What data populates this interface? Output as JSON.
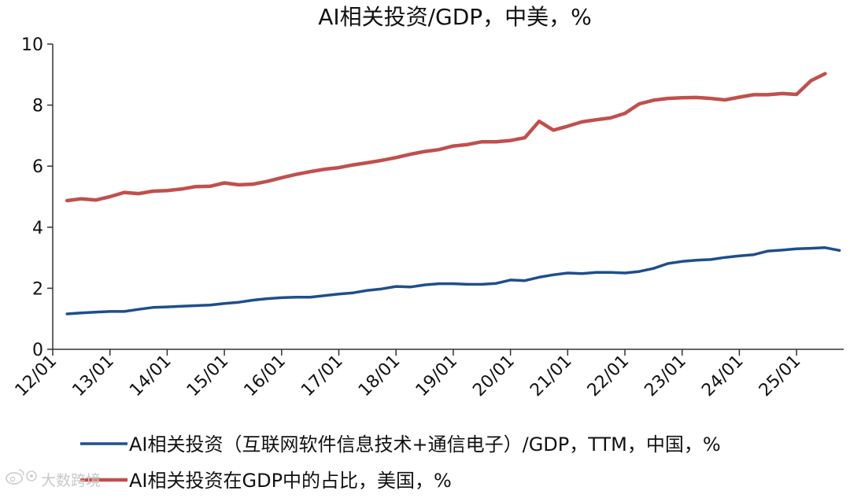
{
  "chart_data": {
    "type": "line",
    "title": "AI相关投资/GDP，中美，%",
    "xlabel": "",
    "ylabel": "",
    "ylim": [
      0,
      10
    ],
    "yticks": [
      "0",
      "2",
      "4",
      "6",
      "8",
      "10"
    ],
    "xticks": [
      "12/01",
      "13/01",
      "14/01",
      "15/01",
      "16/01",
      "17/01",
      "18/01",
      "19/01",
      "20/01",
      "21/01",
      "22/01",
      "23/01",
      "24/01",
      "25/01"
    ],
    "grid": false,
    "legend_position": "bottom",
    "series": [
      {
        "name": "AI相关投资（互联网软件信息技术+通信电子）/GDP，TTM，中国，%",
        "color": "#1f4e8c",
        "points": [
          [
            "12/04",
            1.16
          ],
          [
            "12/07",
            1.19
          ],
          [
            "12/10",
            1.22
          ],
          [
            "13/01",
            1.24
          ],
          [
            "13/04",
            1.24
          ],
          [
            "13/07",
            1.31
          ],
          [
            "13/10",
            1.37
          ],
          [
            "14/01",
            1.39
          ],
          [
            "14/04",
            1.41
          ],
          [
            "14/07",
            1.43
          ],
          [
            "14/10",
            1.45
          ],
          [
            "15/01",
            1.5
          ],
          [
            "15/04",
            1.54
          ],
          [
            "15/07",
            1.61
          ],
          [
            "15/10",
            1.66
          ],
          [
            "16/01",
            1.69
          ],
          [
            "16/04",
            1.71
          ],
          [
            "16/07",
            1.71
          ],
          [
            "16/10",
            1.76
          ],
          [
            "17/01",
            1.81
          ],
          [
            "17/04",
            1.85
          ],
          [
            "17/07",
            1.93
          ],
          [
            "17/10",
            1.98
          ],
          [
            "18/01",
            2.06
          ],
          [
            "18/04",
            2.04
          ],
          [
            "18/07",
            2.11
          ],
          [
            "18/10",
            2.15
          ],
          [
            "19/01",
            2.15
          ],
          [
            "19/04",
            2.13
          ],
          [
            "19/07",
            2.13
          ],
          [
            "19/10",
            2.16
          ],
          [
            "20/01",
            2.27
          ],
          [
            "20/04",
            2.25
          ],
          [
            "20/07",
            2.36
          ],
          [
            "20/10",
            2.44
          ],
          [
            "21/01",
            2.5
          ],
          [
            "21/04",
            2.48
          ],
          [
            "21/07",
            2.52
          ],
          [
            "21/10",
            2.52
          ],
          [
            "22/01",
            2.5
          ],
          [
            "22/04",
            2.55
          ],
          [
            "22/07",
            2.65
          ],
          [
            "22/10",
            2.81
          ],
          [
            "23/01",
            2.88
          ],
          [
            "23/04",
            2.92
          ],
          [
            "23/07",
            2.94
          ],
          [
            "23/10",
            3.01
          ],
          [
            "24/01",
            3.06
          ],
          [
            "24/04",
            3.1
          ],
          [
            "24/07",
            3.22
          ],
          [
            "24/10",
            3.25
          ],
          [
            "25/01",
            3.29
          ],
          [
            "25/04",
            3.31
          ],
          [
            "25/07",
            3.33
          ],
          [
            "25/10",
            3.24
          ]
        ]
      },
      {
        "name": "AI相关投资在GDP中的占比，美国，%",
        "color": "#c0504d",
        "points": [
          [
            "12/04",
            4.87
          ],
          [
            "12/07",
            4.93
          ],
          [
            "12/10",
            4.89
          ],
          [
            "13/01",
            5.0
          ],
          [
            "13/04",
            5.14
          ],
          [
            "13/07",
            5.1
          ],
          [
            "13/10",
            5.18
          ],
          [
            "14/01",
            5.2
          ],
          [
            "14/04",
            5.25
          ],
          [
            "14/07",
            5.33
          ],
          [
            "14/10",
            5.34
          ],
          [
            "15/01",
            5.45
          ],
          [
            "15/04",
            5.39
          ],
          [
            "15/07",
            5.41
          ],
          [
            "15/10",
            5.5
          ],
          [
            "16/01",
            5.62
          ],
          [
            "16/04",
            5.73
          ],
          [
            "16/07",
            5.82
          ],
          [
            "16/10",
            5.9
          ],
          [
            "17/01",
            5.95
          ],
          [
            "17/04",
            6.04
          ],
          [
            "17/07",
            6.11
          ],
          [
            "17/10",
            6.19
          ],
          [
            "18/01",
            6.28
          ],
          [
            "18/04",
            6.39
          ],
          [
            "18/07",
            6.48
          ],
          [
            "18/10",
            6.54
          ],
          [
            "19/01",
            6.66
          ],
          [
            "19/04",
            6.71
          ],
          [
            "19/07",
            6.8
          ],
          [
            "19/10",
            6.8
          ],
          [
            "20/01",
            6.84
          ],
          [
            "20/04",
            6.93
          ],
          [
            "20/07",
            7.47
          ],
          [
            "20/10",
            7.18
          ],
          [
            "21/01",
            7.31
          ],
          [
            "21/04",
            7.45
          ],
          [
            "21/07",
            7.52
          ],
          [
            "21/10",
            7.58
          ],
          [
            "22/01",
            7.73
          ],
          [
            "22/04",
            8.04
          ],
          [
            "22/07",
            8.16
          ],
          [
            "22/10",
            8.22
          ],
          [
            "23/01",
            8.24
          ],
          [
            "23/04",
            8.25
          ],
          [
            "23/07",
            8.22
          ],
          [
            "23/10",
            8.17
          ],
          [
            "24/01",
            8.26
          ],
          [
            "24/04",
            8.34
          ],
          [
            "24/07",
            8.34
          ],
          [
            "24/10",
            8.38
          ],
          [
            "25/01",
            8.35
          ],
          [
            "25/04",
            8.8
          ],
          [
            "25/07",
            9.03
          ]
        ]
      }
    ]
  },
  "watermark": {
    "icon": "weibo-icon",
    "text": "大数跨境"
  }
}
